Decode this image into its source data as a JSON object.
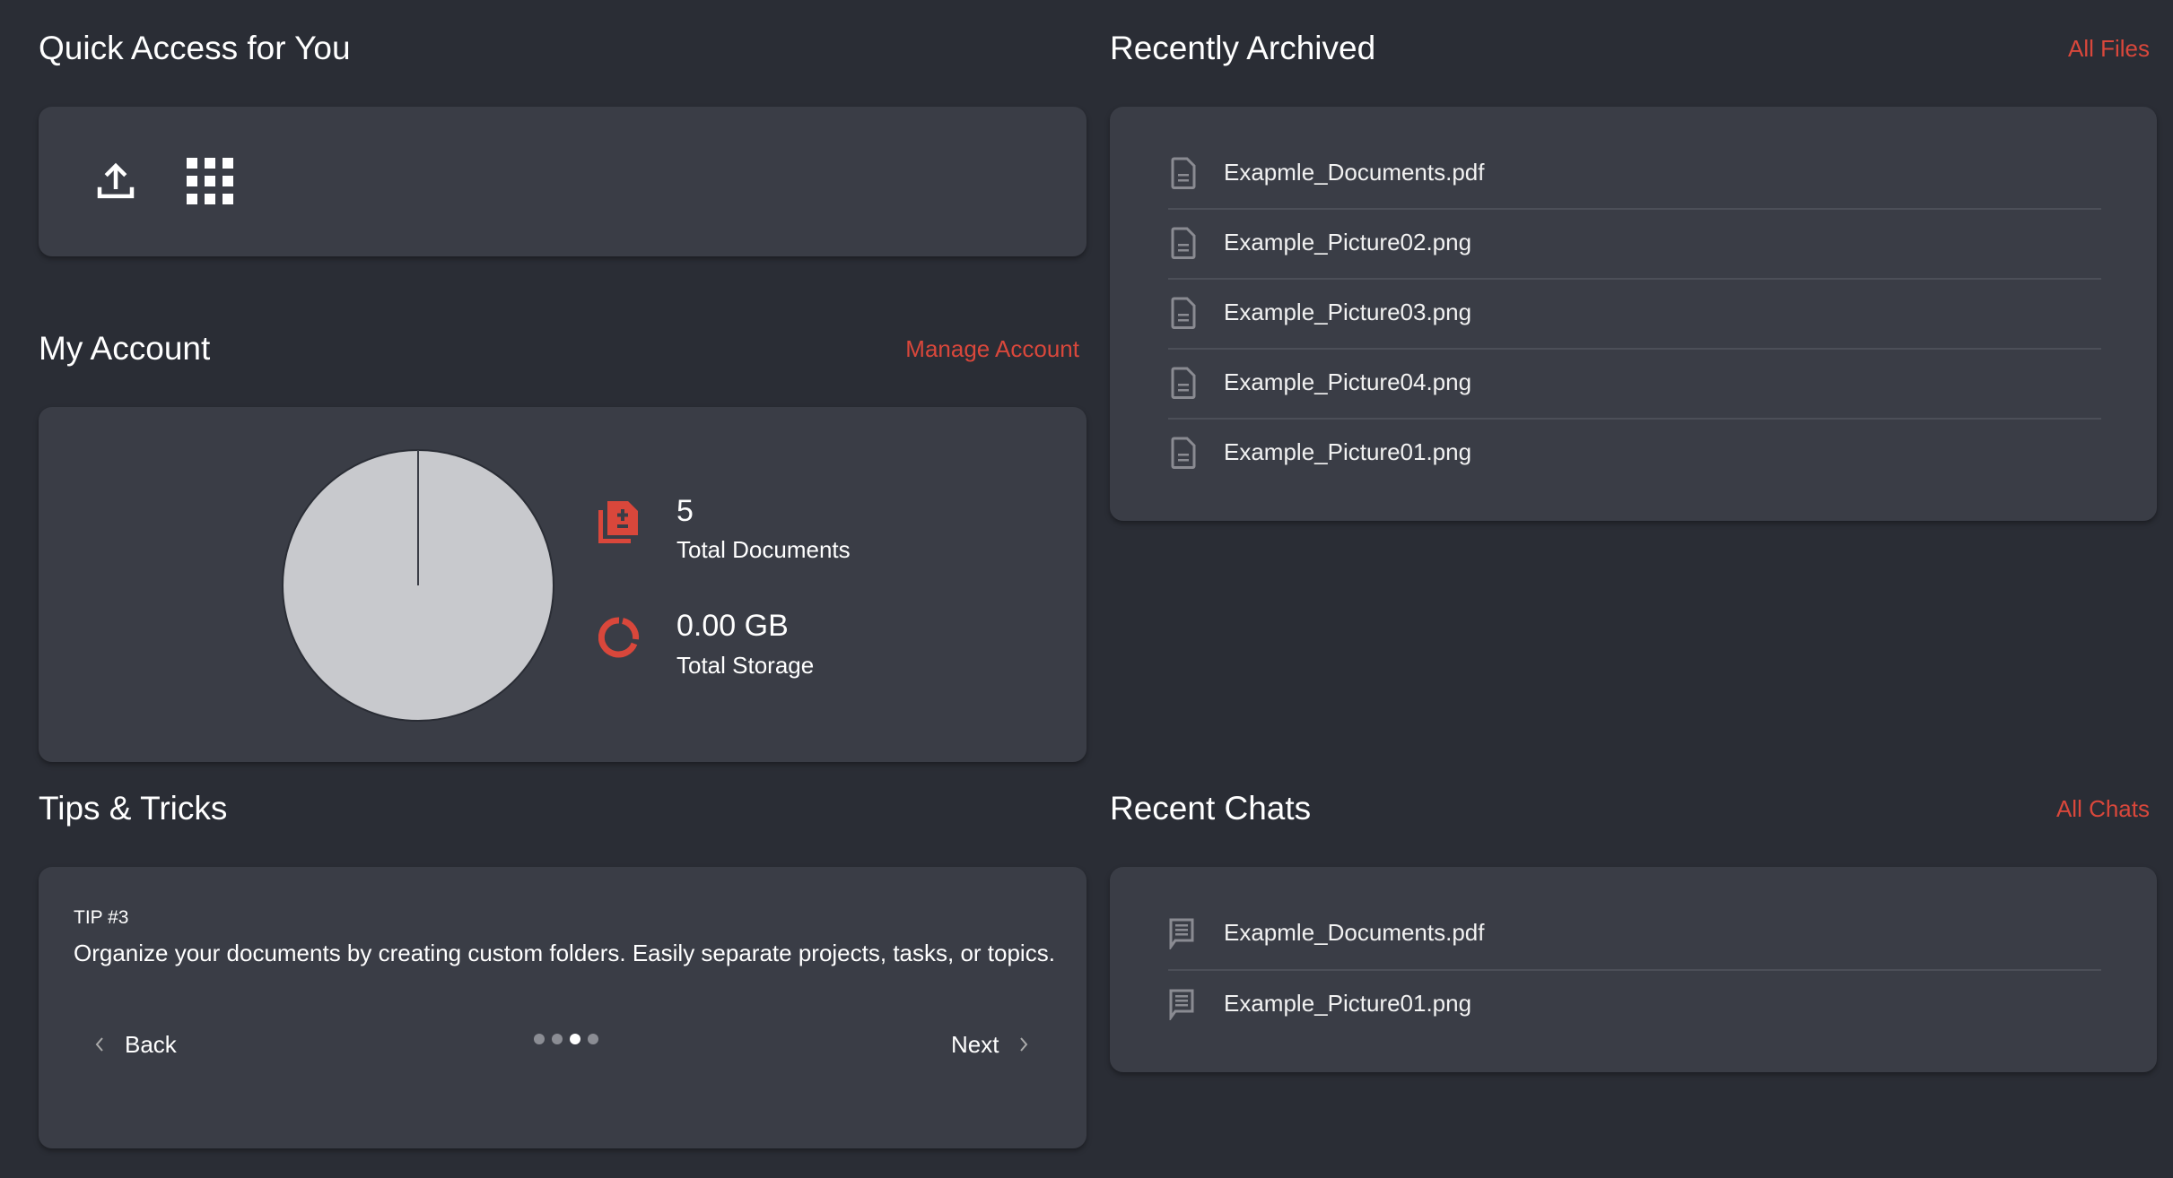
{
  "quick_access": {
    "title": "Quick Access for You",
    "actions": [
      {
        "icon": "upload-icon"
      },
      {
        "icon": "apps-grid-icon"
      }
    ]
  },
  "account": {
    "title": "My Account",
    "manage_link": "Manage Account",
    "documents_value": "5",
    "documents_label": "Total Documents",
    "storage_value": "0.00 GB",
    "storage_label": "Total Storage"
  },
  "tips": {
    "title": "Tips & Tricks",
    "tip_label": "TIP #3",
    "tip_text": "Organize your documents by creating custom folders. Easily separate projects, tasks, or topics.",
    "back_label": "Back",
    "next_label": "Next",
    "page_count": 4,
    "current_page": 3
  },
  "archived": {
    "title": "Recently Archived",
    "all_link": "All Files",
    "items": [
      {
        "name": "Exapmle_Documents.pdf"
      },
      {
        "name": "Example_Picture02.png"
      },
      {
        "name": "Example_Picture03.png"
      },
      {
        "name": "Example_Picture04.png"
      },
      {
        "name": "Example_Picture01.png"
      }
    ]
  },
  "chats": {
    "title": "Recent Chats",
    "all_link": "All Chats",
    "items": [
      {
        "name": "Exapmle_Documents.pdf"
      },
      {
        "name": "Example_Picture01.png"
      }
    ]
  },
  "colors": {
    "background": "#2a2d35",
    "card": "#3a3d46",
    "accent": "#d9473b",
    "pie_fill": "#c8c9cd",
    "icon_muted": "#8a8b92"
  }
}
